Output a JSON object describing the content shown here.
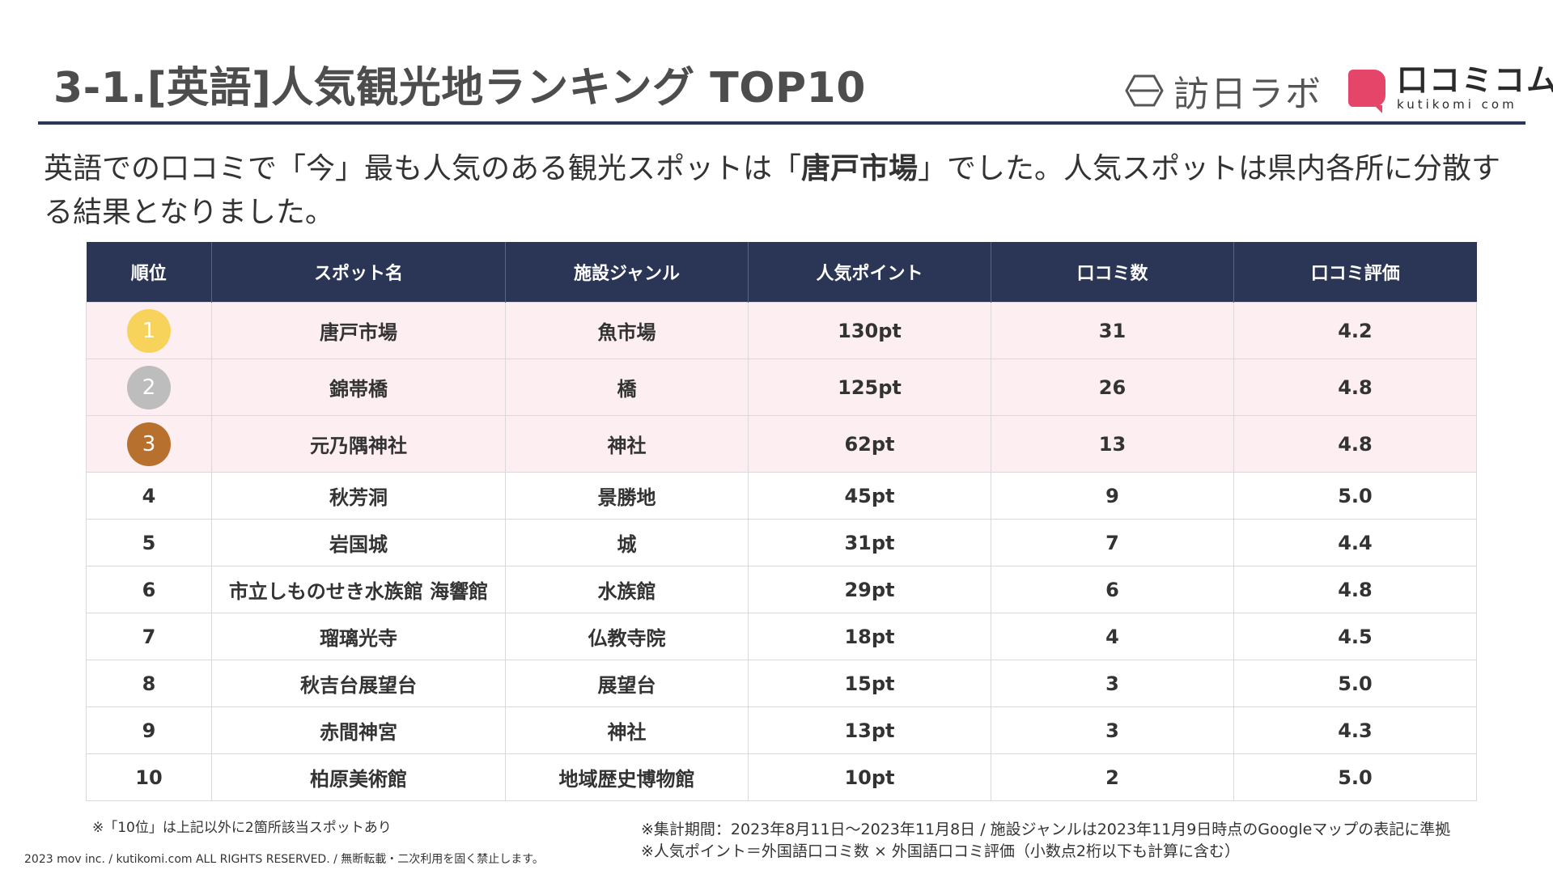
{
  "header": {
    "title": "3-1.[英語]人気観光地ランキング TOP10",
    "logo_lab_text": "訪日ラボ",
    "logo_kutikomi_text": "口コミコム",
    "logo_kutikomi_sub": "kutikomi com"
  },
  "intro": {
    "before": "英語での口コミで「今」最も人気のある観光スポットは「",
    "highlight": "唐戸市場",
    "after": "」でした。人気スポットは県内各所に分散する結果となりました。"
  },
  "table": {
    "headers": [
      "順位",
      "スポット名",
      "施設ジャンル",
      "人気ポイント",
      "口コミ数",
      "口コミ評価"
    ],
    "rows": [
      {
        "rank": "1",
        "spot": "唐戸市場",
        "genre": "魚市場",
        "points": "130pt",
        "reviews": "31",
        "rating": "4.2"
      },
      {
        "rank": "2",
        "spot": "錦帯橋",
        "genre": "橋",
        "points": "125pt",
        "reviews": "26",
        "rating": "4.8"
      },
      {
        "rank": "3",
        "spot": "元乃隅神社",
        "genre": "神社",
        "points": "62pt",
        "reviews": "13",
        "rating": "4.8"
      },
      {
        "rank": "4",
        "spot": "秋芳洞",
        "genre": "景勝地",
        "points": "45pt",
        "reviews": "9",
        "rating": "5.0"
      },
      {
        "rank": "5",
        "spot": "岩国城",
        "genre": "城",
        "points": "31pt",
        "reviews": "7",
        "rating": "4.4"
      },
      {
        "rank": "6",
        "spot": "市立しものせき水族館 海響館",
        "genre": "水族館",
        "points": "29pt",
        "reviews": "6",
        "rating": "4.8"
      },
      {
        "rank": "7",
        "spot": "瑠璃光寺",
        "genre": "仏教寺院",
        "points": "18pt",
        "reviews": "4",
        "rating": "4.5"
      },
      {
        "rank": "8",
        "spot": "秋吉台展望台",
        "genre": "展望台",
        "points": "15pt",
        "reviews": "3",
        "rating": "5.0"
      },
      {
        "rank": "9",
        "spot": "赤間神宮",
        "genre": "神社",
        "points": "13pt",
        "reviews": "3",
        "rating": "4.3"
      },
      {
        "rank": "10",
        "spot": "柏原美術館",
        "genre": "地域歴史博物館",
        "points": "10pt",
        "reviews": "2",
        "rating": "5.0"
      }
    ],
    "medal_colors": [
      "#f7d35c",
      "#bdbdbd",
      "#b8702e"
    ]
  },
  "notes": {
    "left": "※「10位」は上記以外に2箇所該当スポットあり",
    "right_1": "※集計期間：2023年8月11日〜2023年11月8日 / 施設ジャンルは2023年11月9日時点のGoogleマップの表記に準拠",
    "right_2": "※人気ポイント＝外国語口コミ数 × 外国語口コミ評価（小数点2桁以下も計算に含む）"
  },
  "footer": {
    "copyright": "2023 mov inc. / kutikomi.com ALL RIGHTS RESERVED. / 無断転載・二次利用を固く禁止します。"
  },
  "colors": {
    "navy": "#2b3556",
    "top_row_bg": "#fdeef1",
    "brand_pink": "#e6456a"
  }
}
